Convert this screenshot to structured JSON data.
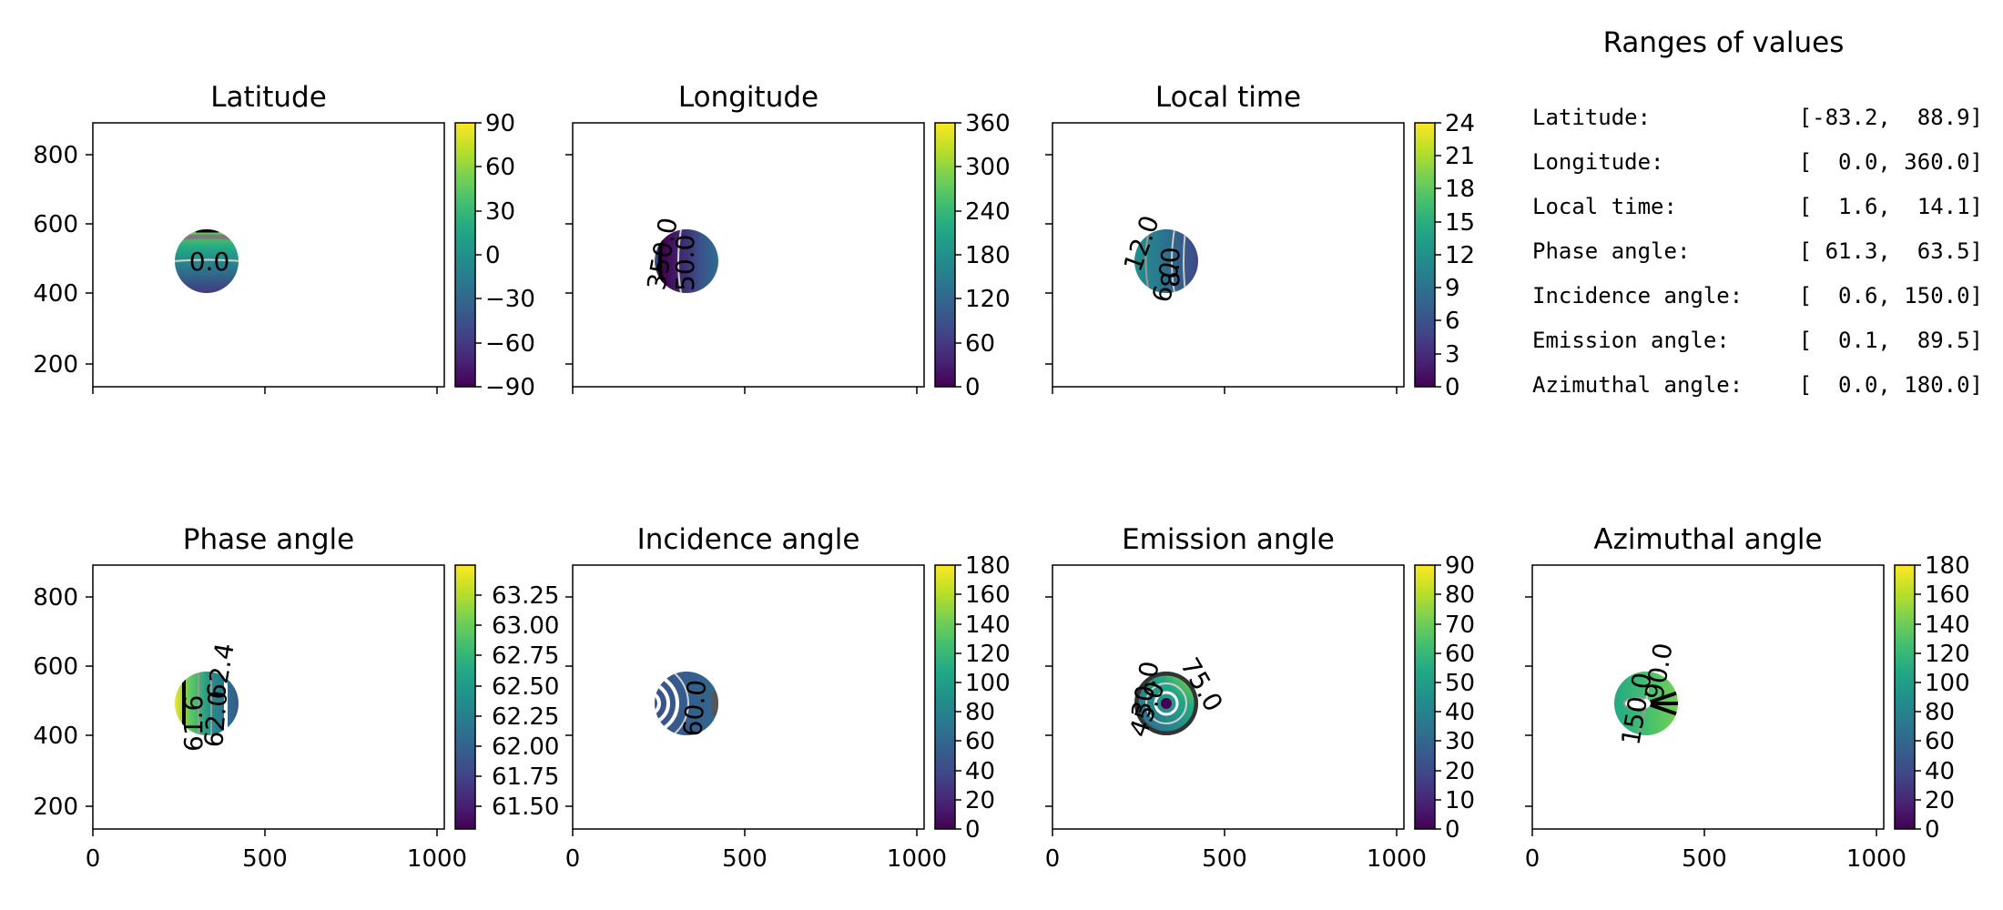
{
  "figure": {
    "panels": [
      {
        "title": "Latitude",
        "colorbar": {
          "min": -90,
          "max": 90,
          "ticks": [
            "−90",
            "−60",
            "−30",
            "0",
            "30",
            "60",
            "90"
          ]
        },
        "contour_labels": [
          {
            "text": "0.0",
            "color": "#c8c8c8"
          }
        ]
      },
      {
        "title": "Longitude",
        "colorbar": {
          "min": 0,
          "max": 360,
          "ticks": [
            "0",
            "60",
            "120",
            "180",
            "240",
            "300",
            "360"
          ]
        },
        "contour_labels": [
          {
            "text": "350.0",
            "color": "#000000"
          },
          {
            "text": "50.0",
            "color": "#c8c8c8"
          }
        ]
      },
      {
        "title": "Local time",
        "colorbar": {
          "min": 0,
          "max": 24,
          "ticks": [
            "0",
            "3",
            "6",
            "9",
            "12",
            "15",
            "18",
            "21",
            "24"
          ]
        },
        "contour_labels": [
          {
            "text": "12.0",
            "color": "#9a9a9a"
          },
          {
            "text": "8.0",
            "color": "#c8c8c8"
          },
          {
            "text": "6.0",
            "color": "#c8c8c8"
          }
        ]
      },
      {
        "title": "Phase angle",
        "colorbar": {
          "min": 61.3,
          "max": 63.5,
          "ticks": [
            "61.50",
            "61.75",
            "62.00",
            "62.25",
            "62.50",
            "62.75",
            "63.00",
            "63.25"
          ]
        },
        "contour_labels": [
          {
            "text": "62.4",
            "color": "#9a9a9a"
          },
          {
            "text": "62.0",
            "color": "#9a9a9a"
          },
          {
            "text": "61.6",
            "color": "#9a9a9a"
          }
        ]
      },
      {
        "title": "Incidence angle",
        "colorbar": {
          "min": 0,
          "max": 180,
          "ticks": [
            "0",
            "20",
            "40",
            "60",
            "80",
            "100",
            "120",
            "140",
            "160",
            "180"
          ]
        },
        "contour_labels": [
          {
            "text": "60.0",
            "color": "#c8c8c8"
          }
        ]
      },
      {
        "title": "Emission angle",
        "colorbar": {
          "min": 0,
          "max": 90,
          "ticks": [
            "0",
            "10",
            "20",
            "30",
            "40",
            "50",
            "60",
            "70",
            "80",
            "90"
          ]
        },
        "contour_labels": [
          {
            "text": "75.0",
            "color": "#000000"
          },
          {
            "text": "30.0",
            "color": "#c8c8c8"
          },
          {
            "text": "45.0",
            "color": "#9a9a9a"
          }
        ]
      },
      {
        "title": "Azimuthal angle",
        "colorbar": {
          "min": 0,
          "max": 180,
          "ticks": [
            "0",
            "20",
            "40",
            "60",
            "80",
            "100",
            "120",
            "140",
            "160",
            "180"
          ]
        },
        "contour_labels": [
          {
            "text": "150.0",
            "color": "#9a9a9a"
          },
          {
            "text": "90.0",
            "color": "#c8c8c8"
          }
        ]
      }
    ],
    "axes": {
      "xlim": [
        0,
        1024
      ],
      "ylim": [
        130,
        900
      ],
      "xticks": [
        "0",
        "500",
        "1000"
      ],
      "yticks": [
        "200",
        "400",
        "600",
        "800"
      ]
    },
    "ranges": {
      "title": "Ranges of values",
      "rows": [
        {
          "label": "Latitude:",
          "range": "[-83.2,  88.9]"
        },
        {
          "label": "Longitude:",
          "range": "[  0.0, 360.0]"
        },
        {
          "label": "Local time:",
          "range": "[  1.6,  14.1]"
        },
        {
          "label": "Phase angle:",
          "range": "[ 61.3,  63.5]"
        },
        {
          "label": "Incidence angle:",
          "range": "[  0.6, 150.0]"
        },
        {
          "label": "Emission angle:",
          "range": "[  0.1,  89.5]"
        },
        {
          "label": "Azimuthal angle:",
          "range": "[  0.0, 180.0]"
        }
      ]
    },
    "colormap": "viridis"
  },
  "chart_data": [
    {
      "type": "heatmap",
      "title": "Latitude",
      "xlim": [
        0,
        1024
      ],
      "ylim": [
        130,
        900
      ],
      "value_range": [
        -83.2,
        88.9
      ],
      "clim": [
        -90,
        90
      ],
      "disc": {
        "x": 335,
        "y": 490
      },
      "contour_levels": [
        0.0
      ]
    },
    {
      "type": "heatmap",
      "title": "Longitude",
      "xlim": [
        0,
        1024
      ],
      "ylim": [
        130,
        900
      ],
      "value_range": [
        0.0,
        360.0
      ],
      "clim": [
        0,
        360
      ],
      "disc": {
        "x": 335,
        "y": 490
      },
      "contour_levels": [
        50.0,
        350.0
      ]
    },
    {
      "type": "heatmap",
      "title": "Local time",
      "xlim": [
        0,
        1024
      ],
      "ylim": [
        130,
        900
      ],
      "value_range": [
        1.6,
        14.1
      ],
      "clim": [
        0,
        24
      ],
      "disc": {
        "x": 335,
        "y": 490
      },
      "contour_levels": [
        6.0,
        8.0,
        12.0
      ]
    },
    {
      "type": "heatmap",
      "title": "Phase angle",
      "xlim": [
        0,
        1024
      ],
      "ylim": [
        130,
        900
      ],
      "value_range": [
        61.3,
        63.5
      ],
      "clim": [
        61.3,
        63.5
      ],
      "disc": {
        "x": 335,
        "y": 490
      },
      "contour_levels": [
        61.6,
        62.0,
        62.4
      ]
    },
    {
      "type": "heatmap",
      "title": "Incidence angle",
      "xlim": [
        0,
        1024
      ],
      "ylim": [
        130,
        900
      ],
      "value_range": [
        0.6,
        150.0
      ],
      "clim": [
        0,
        180
      ],
      "disc": {
        "x": 335,
        "y": 490
      },
      "contour_levels": [
        60.0
      ]
    },
    {
      "type": "heatmap",
      "title": "Emission angle",
      "xlim": [
        0,
        1024
      ],
      "ylim": [
        130,
        900
      ],
      "value_range": [
        0.1,
        89.5
      ],
      "clim": [
        0,
        90
      ],
      "disc": {
        "x": 335,
        "y": 490
      },
      "contour_levels": [
        30.0,
        45.0,
        75.0
      ]
    },
    {
      "type": "heatmap",
      "title": "Azimuthal angle",
      "xlim": [
        0,
        1024
      ],
      "ylim": [
        130,
        900
      ],
      "value_range": [
        0.0,
        180.0
      ],
      "clim": [
        0,
        180
      ],
      "disc": {
        "x": 335,
        "y": 490
      },
      "contour_levels": [
        90.0,
        150.0
      ]
    }
  ]
}
